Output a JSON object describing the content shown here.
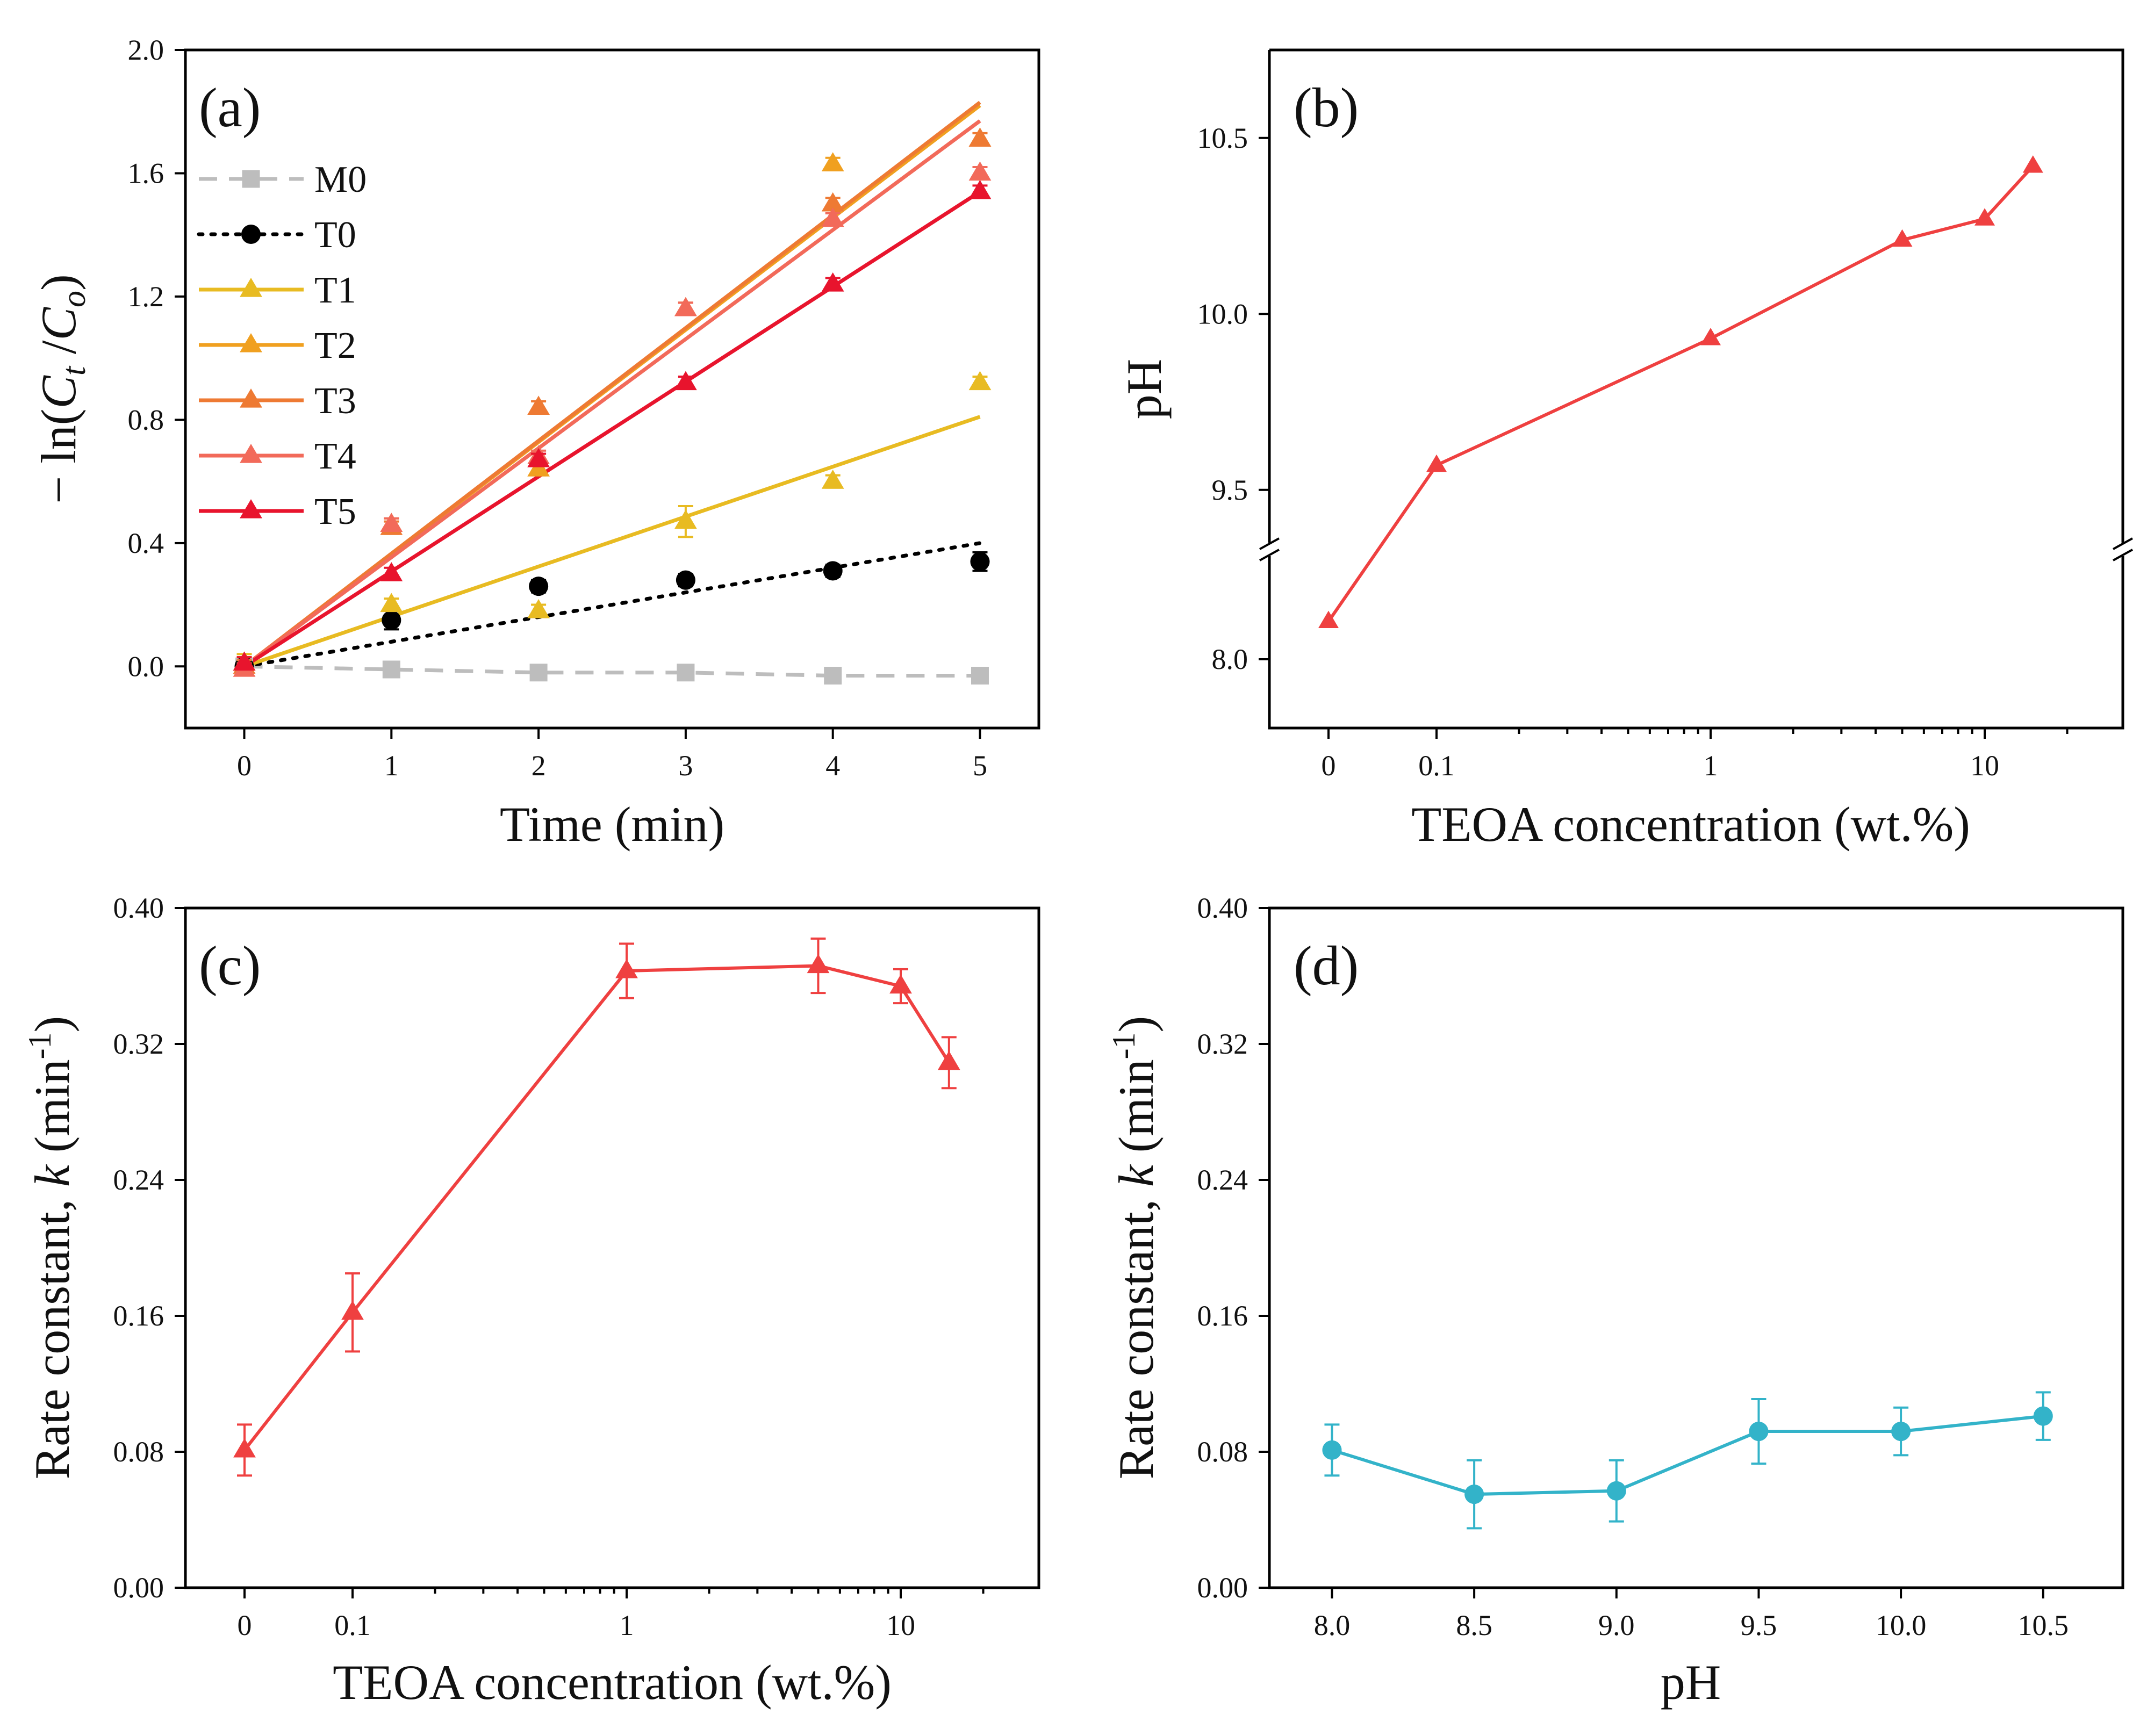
{
  "colors": {
    "M0": "#bdbdbd",
    "T0": "#000000",
    "T1": "#e8bb22",
    "T2": "#f0a020",
    "T3": "#ee7a33",
    "T4": "#f26a5a",
    "T5": "#e8142d",
    "red": "#ef4040",
    "cyan": "#33b3c9"
  },
  "chart_data": [
    {
      "panel": "a",
      "panel_label": "(a)",
      "type": "scatter",
      "xlabel": "Time (min)",
      "ylabel": "− ln(C_t / C_o)",
      "ylabel_parts": {
        "prefix": "− ln(",
        "c1": "C",
        "s1": "t",
        "mid": " /",
        "c2": "C",
        "s2": "o",
        "suffix": ")"
      },
      "xlim": [
        -0.4,
        5.4
      ],
      "ylim": [
        -0.2,
        2.0
      ],
      "xticks": [
        0,
        1,
        2,
        3,
        4,
        5
      ],
      "xtick_labels": [
        "0",
        "1",
        "2",
        "3",
        "4",
        "5"
      ],
      "yticks": [
        0.0,
        0.4,
        0.8,
        1.2,
        1.6,
        2.0
      ],
      "ytick_labels": [
        "0.0",
        "0.4",
        "0.8",
        "1.2",
        "1.6",
        "2.0"
      ],
      "legend_position": "upper-left",
      "series": [
        {
          "name": "M0",
          "marker": "square",
          "line": "dashed",
          "fit": false,
          "x": [
            0,
            1,
            2,
            3,
            4,
            5
          ],
          "y": [
            0.0,
            -0.01,
            -0.02,
            -0.02,
            -0.03,
            -0.03
          ],
          "err": [
            0,
            0,
            0,
            0,
            0,
            0
          ]
        },
        {
          "name": "T0",
          "marker": "circle",
          "line": "dotted",
          "fit": false,
          "x": [
            0,
            1,
            2,
            3,
            4,
            5
          ],
          "y": [
            0.0,
            0.15,
            0.26,
            0.28,
            0.31,
            0.34
          ],
          "err": [
            0.02,
            0.03,
            0.02,
            0.02,
            0.02,
            0.03
          ],
          "line_y": [
            0.0,
            0.08,
            0.16,
            0.24,
            0.32,
            0.4
          ]
        },
        {
          "name": "T1",
          "marker": "triangle",
          "line": "solid",
          "fit": true,
          "x": [
            0,
            1,
            2,
            3,
            4,
            5
          ],
          "y": [
            0.01,
            0.2,
            0.18,
            0.47,
            0.6,
            0.92
          ],
          "err": [
            0.03,
            0.02,
            0.02,
            0.05,
            0.02,
            0.02
          ],
          "fit_line": [
            0.0,
            0.81
          ]
        },
        {
          "name": "T2",
          "marker": "triangle",
          "line": "solid",
          "fit": true,
          "x": [
            0,
            1,
            2,
            3,
            4,
            5
          ],
          "y": [
            0.01,
            0.46,
            0.64,
            1.16,
            1.63,
            1.71
          ],
          "err": [
            0.02,
            0.02,
            0.02,
            0.02,
            0.02,
            0.02
          ],
          "fit_line": [
            0.0,
            1.82
          ]
        },
        {
          "name": "T3",
          "marker": "triangle",
          "line": "solid",
          "fit": true,
          "x": [
            0,
            1,
            2,
            3,
            4,
            5
          ],
          "y": [
            0.0,
            0.45,
            0.84,
            1.16,
            1.5,
            1.71
          ],
          "err": [
            0.02,
            0.02,
            0.02,
            0.02,
            0.02,
            0.02
          ],
          "fit_line": [
            0.0,
            1.83
          ]
        },
        {
          "name": "T4",
          "marker": "triangle",
          "line": "solid",
          "fit": true,
          "x": [
            0,
            1,
            2,
            3,
            4,
            5
          ],
          "y": [
            -0.01,
            0.46,
            0.68,
            1.16,
            1.45,
            1.6
          ],
          "err": [
            0.02,
            0.02,
            0.02,
            0.02,
            0.02,
            0.02
          ],
          "fit_line": [
            0.0,
            1.77
          ]
        },
        {
          "name": "T5",
          "marker": "triangle",
          "line": "solid",
          "fit": true,
          "x": [
            0,
            1,
            2,
            3,
            4,
            5
          ],
          "y": [
            0.01,
            0.3,
            0.67,
            0.92,
            1.24,
            1.54
          ],
          "err": [
            0.02,
            0.02,
            0.02,
            0.02,
            0.02,
            0.02
          ],
          "fit_line": [
            0.0,
            1.54
          ]
        }
      ]
    },
    {
      "panel": "b",
      "panel_label": "(b)",
      "type": "line",
      "xlabel": "TEOA concentration (wt.%)",
      "ylabel": "pH",
      "x_scale": "log, with 0 shown on a broken segment",
      "xtick_labels": [
        "0",
        "0.1",
        "1",
        "10"
      ],
      "xtick_values": [
        0,
        0.1,
        1,
        10
      ],
      "y_axis_break": {
        "lower_range": [
          7.8,
          8.3
        ],
        "upper_range": [
          9.35,
          10.75
        ]
      },
      "ytick_labels": [
        "8.0",
        "9.5",
        "10.0",
        "10.5"
      ],
      "ytick_values": [
        8.0,
        9.5,
        10.0,
        10.5
      ],
      "series": [
        {
          "name": "pH",
          "marker": "triangle",
          "x": [
            0,
            0.1,
            1,
            5,
            10,
            15
          ],
          "y": [
            8.11,
            9.57,
            9.93,
            10.21,
            10.27,
            10.42
          ]
        }
      ]
    },
    {
      "panel": "c",
      "panel_label": "(c)",
      "type": "line",
      "xlabel": "TEOA concentration (wt.%)",
      "ylabel_prefix": "Rate constant, ",
      "ylabel_k": "k",
      "ylabel_unit": " (min",
      "ylabel_sup": "-1",
      "ylabel_end": ")",
      "x_scale": "log, with 0 shown on a broken segment",
      "xtick_labels": [
        "0",
        "0.1",
        "1",
        "10"
      ],
      "xtick_values": [
        0,
        0.1,
        1,
        10
      ],
      "ylim": [
        0.0,
        0.4
      ],
      "ytick_labels": [
        "0.00",
        "0.08",
        "0.16",
        "0.24",
        "0.32",
        "0.40"
      ],
      "ytick_values": [
        0.0,
        0.08,
        0.16,
        0.24,
        0.32,
        0.4
      ],
      "series": [
        {
          "name": "k",
          "marker": "triangle",
          "x": [
            0,
            0.1,
            1,
            5,
            10,
            15
          ],
          "y": [
            0.081,
            0.162,
            0.363,
            0.366,
            0.354,
            0.309
          ],
          "err": [
            0.015,
            0.023,
            0.016,
            0.016,
            0.01,
            0.015
          ]
        }
      ]
    },
    {
      "panel": "d",
      "panel_label": "(d)",
      "type": "line",
      "xlabel": "pH",
      "ylabel_prefix": "Rate constant, ",
      "ylabel_k": "k",
      "ylabel_unit": " (min",
      "ylabel_sup": "-1",
      "ylabel_end": ")",
      "xlim": [
        7.78,
        10.78
      ],
      "xtick_labels": [
        "8.0",
        "8.5",
        "9.0",
        "9.5",
        "10.0",
        "10.5"
      ],
      "xtick_values": [
        8.0,
        8.5,
        9.0,
        9.5,
        10.0,
        10.5
      ],
      "ylim": [
        0.0,
        0.4
      ],
      "ytick_labels": [
        "0.00",
        "0.08",
        "0.16",
        "0.24",
        "0.32",
        "0.40"
      ],
      "ytick_values": [
        0.0,
        0.08,
        0.16,
        0.24,
        0.32,
        0.4
      ],
      "series": [
        {
          "name": "k",
          "marker": "circle",
          "x": [
            8.0,
            8.5,
            9.0,
            9.5,
            10.0,
            10.5
          ],
          "y": [
            0.081,
            0.055,
            0.057,
            0.092,
            0.092,
            0.101
          ],
          "err": [
            0.015,
            0.02,
            0.018,
            0.019,
            0.014,
            0.014
          ]
        }
      ]
    }
  ]
}
